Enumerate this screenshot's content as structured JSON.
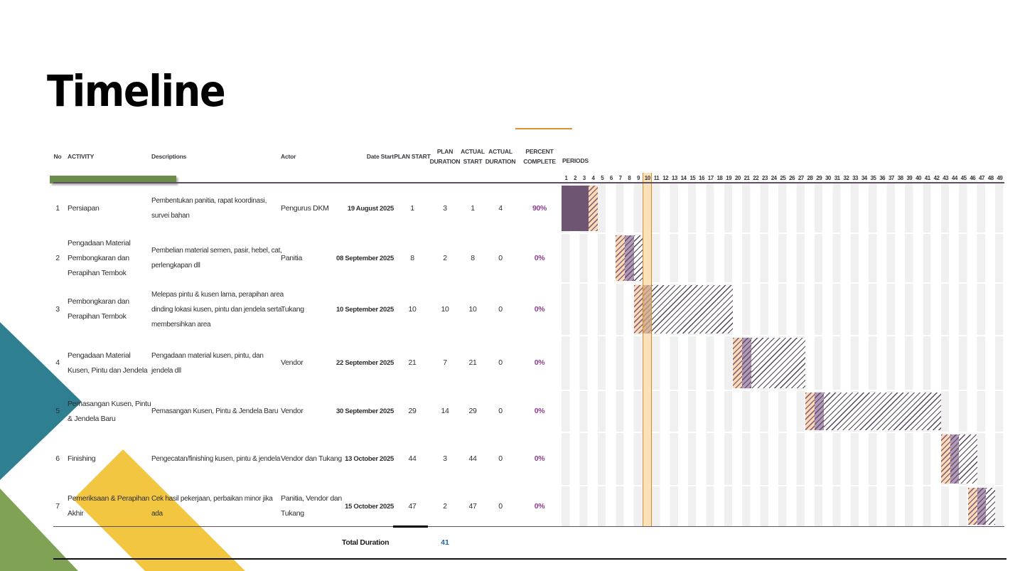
{
  "title": "Timeline",
  "colors": {
    "green_bar": "#6B8C4B",
    "orange_accent": "#D9952F",
    "header_text": "#3A3A42",
    "solid_purple": "#6E5571",
    "hatch_orange_bg": "#FBDDB5",
    "hatch_purple_bg": "#B29BB8",
    "hatch_line": "#8F6383",
    "dark_hatch_line": "#55445A",
    "band_fill": "#F6C882",
    "band_border": "#D28A26",
    "percent_text": "#8E3D8E",
    "total_blue": "#2368A0",
    "line_dark": "#5F4F63",
    "teal_shape": "#2E7F90",
    "yellow_shape": "#F2C641",
    "green_shape": "#7FA254"
  },
  "table": {
    "headers": {
      "no": "No",
      "activity": "ACTIVITY",
      "descriptions": "Descriptions",
      "actor": "Actor",
      "date_start": "Date Start",
      "plan_start": "PLAN START",
      "plan_duration": "PLAN DURATION",
      "actual_start": "ACTUAL START",
      "actual_duration": "ACTUAL DURATION",
      "percent_complete": "PERCENT COMPLETE"
    },
    "rows": [
      {
        "no": "1",
        "activity": "Persiapan",
        "description": "Pembentukan panitia, rapat koordinasi, survei bahan",
        "actor": "Pengurus DKM",
        "date_start": "19 August 2025",
        "plan_start": "1",
        "plan_duration": "3",
        "actual_start": "1",
        "actual_duration": "4",
        "percent": "90%"
      },
      {
        "no": "2",
        "activity": "Pengadaan Material Pembongkaran dan Perapihan Tembok",
        "description": "Pembelian material semen, pasir, hebel, cat, perlengkapan dll",
        "actor": "Panitia",
        "date_start": "08 September 2025",
        "plan_start": "8",
        "plan_duration": "2",
        "actual_start": "8",
        "actual_duration": "0",
        "percent": "0%"
      },
      {
        "no": "3",
        "activity": "Pembongkaran dan Perapihan Tembok",
        "description": "Melepas pintu & kusen lama, perapihan area dinding lokasi kusen, pintu dan jendela serta membersihkan area",
        "actor": "Tukang",
        "date_start": "10 September 2025",
        "plan_start": "10",
        "plan_duration": "10",
        "actual_start": "10",
        "actual_duration": "0",
        "percent": "0%"
      },
      {
        "no": "4",
        "activity": "Pengadaan Material Kusen, Pintu dan Jendela",
        "description": "Pengadaan material kusen, pintu, dan jendela dll",
        "actor": "Vendor",
        "date_start": "22 September 2025",
        "plan_start": "21",
        "plan_duration": "7",
        "actual_start": "21",
        "actual_duration": "0",
        "percent": "0%"
      },
      {
        "no": "5",
        "activity": "Pemasangan Kusen, Pintu & Jendela Baru",
        "description": "Pemasangan Kusen, Pintu & Jendela Baru",
        "actor": "Vendor",
        "date_start": "30 September 2025",
        "plan_start": "29",
        "plan_duration": "14",
        "actual_start": "29",
        "actual_duration": "0",
        "percent": "0%"
      },
      {
        "no": "6",
        "activity": "Finishing",
        "description": "Pengecatan/finishing kusen, pintu & jendela",
        "actor": "Vendor dan Tukang",
        "date_start": "13 October 2025",
        "plan_start": "44",
        "plan_duration": "3",
        "actual_start": "44",
        "actual_duration": "0",
        "percent": "0%"
      },
      {
        "no": "7",
        "activity": "Pemeriksaan & Perapihan Akhir",
        "description": "Cek hasil pekerjaan, perbaikan minor jika ada",
        "actor": "Panitia, Vendor dan Tukang",
        "date_start": "15 October 2025",
        "plan_start": "47",
        "plan_duration": "2",
        "actual_start": "47",
        "actual_duration": "0",
        "percent": "0%"
      }
    ],
    "total_label": "Total Duration",
    "total_value": "41"
  },
  "gantt": {
    "periods_label": "PERIODS",
    "period_count": 49,
    "highlighted_period": 10,
    "bars": [
      {
        "segments": [
          {
            "type": "solid",
            "start": 1,
            "span": 3
          },
          {
            "type": "plan_hatch_orange",
            "start": 4,
            "span": 1
          }
        ]
      },
      {
        "segments": [
          {
            "type": "plan_hatch_orange",
            "start": 7,
            "span": 1
          },
          {
            "type": "plan_hatch_purple",
            "start": 8,
            "span": 1
          },
          {
            "type": "plan_hatch_dark",
            "start": 9,
            "span": 1
          }
        ]
      },
      {
        "segments": [
          {
            "type": "plan_hatch_orange",
            "start": 9,
            "span": 1
          },
          {
            "type": "plan_hatch_purple",
            "start": 10,
            "span": 1
          },
          {
            "type": "plan_hatch_dark",
            "start": 11,
            "span": 9
          }
        ]
      },
      {
        "segments": [
          {
            "type": "plan_hatch_orange",
            "start": 20,
            "span": 1
          },
          {
            "type": "plan_hatch_purple",
            "start": 21,
            "span": 1
          },
          {
            "type": "plan_hatch_dark",
            "start": 22,
            "span": 6
          }
        ]
      },
      {
        "segments": [
          {
            "type": "plan_hatch_orange",
            "start": 28,
            "span": 1
          },
          {
            "type": "plan_hatch_purple",
            "start": 29,
            "span": 1
          },
          {
            "type": "plan_hatch_dark",
            "start": 30,
            "span": 13
          }
        ]
      },
      {
        "segments": [
          {
            "type": "plan_hatch_orange",
            "start": 43,
            "span": 1
          },
          {
            "type": "plan_hatch_purple",
            "start": 44,
            "span": 1
          },
          {
            "type": "plan_hatch_dark",
            "start": 45,
            "span": 2
          }
        ]
      },
      {
        "segments": [
          {
            "type": "plan_hatch_orange",
            "start": 46,
            "span": 1
          },
          {
            "type": "plan_hatch_purple",
            "start": 47,
            "span": 1
          },
          {
            "type": "plan_hatch_dark",
            "start": 48,
            "span": 1
          }
        ]
      }
    ]
  },
  "chart_data": {
    "type": "table",
    "subtype": "gantt",
    "title": "Timeline",
    "period_axis": {
      "label": "PERIODS",
      "min": 1,
      "max": 49,
      "highlighted_period": 10
    },
    "tasks": [
      {
        "no": 1,
        "activity": "Persiapan",
        "actor": "Pengurus DKM",
        "date_start": "19 August 2025",
        "plan_start": 1,
        "plan_duration": 3,
        "actual_start": 1,
        "actual_duration": 4,
        "percent_complete": 90
      },
      {
        "no": 2,
        "activity": "Pengadaan Material Pembongkaran dan Perapihan Tembok",
        "actor": "Panitia",
        "date_start": "08 September 2025",
        "plan_start": 8,
        "plan_duration": 2,
        "actual_start": 8,
        "actual_duration": 0,
        "percent_complete": 0
      },
      {
        "no": 3,
        "activity": "Pembongkaran dan Perapihan Tembok",
        "actor": "Tukang",
        "date_start": "10 September 2025",
        "plan_start": 10,
        "plan_duration": 10,
        "actual_start": 10,
        "actual_duration": 0,
        "percent_complete": 0
      },
      {
        "no": 4,
        "activity": "Pengadaan Material Kusen, Pintu dan Jendela",
        "actor": "Vendor",
        "date_start": "22 September 2025",
        "plan_start": 21,
        "plan_duration": 7,
        "actual_start": 21,
        "actual_duration": 0,
        "percent_complete": 0
      },
      {
        "no": 5,
        "activity": "Pemasangan Kusen, Pintu & Jendela Baru",
        "actor": "Vendor",
        "date_start": "30 September 2025",
        "plan_start": 29,
        "plan_duration": 14,
        "actual_start": 29,
        "actual_duration": 0,
        "percent_complete": 0
      },
      {
        "no": 6,
        "activity": "Finishing",
        "actor": "Vendor dan Tukang",
        "date_start": "13 October 2025",
        "plan_start": 44,
        "plan_duration": 3,
        "actual_start": 44,
        "actual_duration": 0,
        "percent_complete": 0
      },
      {
        "no": 7,
        "activity": "Pemeriksaan & Perapihan Akhir",
        "actor": "Panitia, Vendor dan Tukang",
        "date_start": "15 October 2025",
        "plan_start": 47,
        "plan_duration": 2,
        "actual_start": 47,
        "actual_duration": 0,
        "percent_complete": 0
      }
    ],
    "total_duration": 41
  }
}
